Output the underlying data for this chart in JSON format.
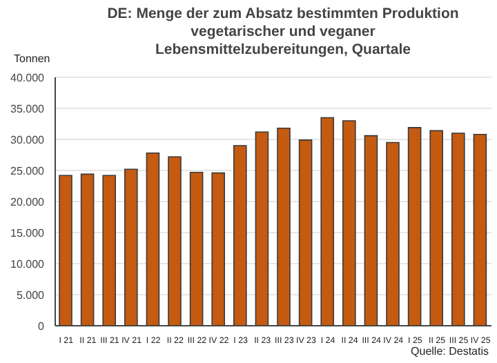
{
  "chart_data": {
    "type": "bar",
    "title": "DE: Menge der zum Absatz bestimmten Produktion vegetarischer und veganer Lebensmittelzubereitungen, Quartale",
    "ylabel": "Tonnen",
    "annotations": [
      "Quelle: Destatis"
    ],
    "categories": [
      "I 21",
      "II 21",
      "III 21",
      "IV 21",
      "I 22",
      "II 22",
      "III 22",
      "IV 22",
      "I 23",
      "II 23",
      "III 23",
      "IV 23",
      "I 24",
      "II 24",
      "III 24",
      "IV 24",
      "I 25",
      "II 25",
      "III 25",
      "IV 25"
    ],
    "values": [
      24200,
      24400,
      24200,
      25200,
      27800,
      27200,
      24700,
      24600,
      29000,
      31200,
      31800,
      29900,
      33500,
      33000,
      30600,
      29500,
      31900,
      31400,
      31000,
      30800
    ],
    "color": "#c55a11",
    "ylim": [
      0,
      40000
    ],
    "yticks": [
      0,
      {
        "value": 5000,
        "label": "5.000"
      },
      {
        "value": 10000,
        "label": "10.000"
      },
      {
        "value": 15000,
        "label": "15.000"
      },
      {
        "value": 20000,
        "label": "20.000"
      },
      {
        "value": 25000,
        "label": "25.000"
      },
      {
        "value": 30000,
        "label": "30.000"
      },
      {
        "value": 35000,
        "label": "35.000"
      },
      {
        "value": 40000,
        "label": "40.000"
      }
    ],
    "grid": "y"
  }
}
